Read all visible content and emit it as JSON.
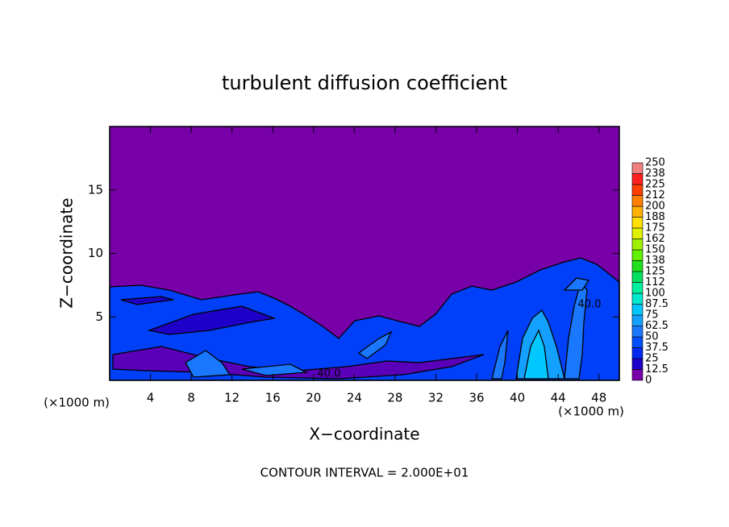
{
  "chart_data": {
    "type": "contour",
    "title": "turbulent diffusion coefficient",
    "x_label": "X−coordinate",
    "y_label": "Z−coordinate",
    "x_unit_label": "(×1000 m)",
    "note": "CONTOUR INTERVAL = 2.000E+01",
    "contour_label": "40.0",
    "xlim": [
      0,
      50
    ],
    "ylim": [
      0,
      20
    ],
    "xticks": [
      4,
      8,
      12,
      16,
      20,
      24,
      28,
      32,
      36,
      40,
      44,
      48
    ],
    "yticks": [
      5,
      10,
      15
    ],
    "levels": [
      0,
      12.5,
      25,
      37.5,
      50,
      62.5,
      75,
      87.5,
      100,
      {
        "value": 112.5,
        "label": "112"
      },
      125,
      {
        "value": 137.5,
        "label": "138"
      },
      150,
      {
        "value": 162.5,
        "label": "162"
      },
      175,
      {
        "value": 187.5,
        "label": "188"
      },
      200,
      {
        "value": 212.5,
        "label": "212"
      },
      225,
      {
        "value": 237.5,
        "label": "238"
      },
      250
    ],
    "colors": [
      "#7800a8",
      "#1e00c8",
      "#0028f0",
      "#0050ff",
      "#1a78ff",
      "#14a0ff",
      "#00c8ff",
      "#00e8d0",
      "#00f0a0",
      "#00e060",
      "#20e020",
      "#60f000",
      "#a0f000",
      "#e0f000",
      "#ffe000",
      "#ffb000",
      "#ff8000",
      "#ff4000",
      "#ff2020",
      "#f08080"
    ]
  }
}
